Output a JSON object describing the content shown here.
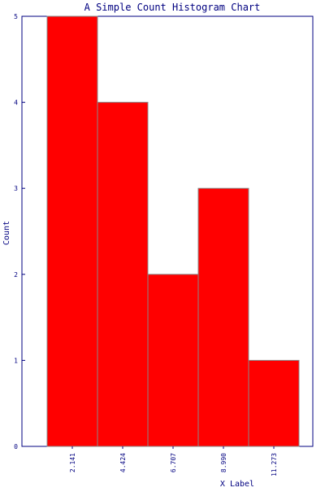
{
  "chart_data": {
    "type": "bar",
    "title": "A Simple Count Histogram Chart",
    "xlabel": "X Label",
    "ylabel": "Count",
    "categories": [
      "2.141",
      "4.424",
      "6.707",
      "8.990",
      "11.273"
    ],
    "values": [
      5,
      4,
      2,
      3,
      1
    ],
    "ylim": [
      0,
      5
    ],
    "yticks": [
      "0",
      "1",
      "2",
      "3",
      "4",
      "5"
    ],
    "grid": false,
    "legend": "none"
  },
  "colors": {
    "bar_fill": "#ff0000",
    "bar_edge": "#888888",
    "axis": "#000080",
    "text": "#000080",
    "background": "#ffffff"
  }
}
